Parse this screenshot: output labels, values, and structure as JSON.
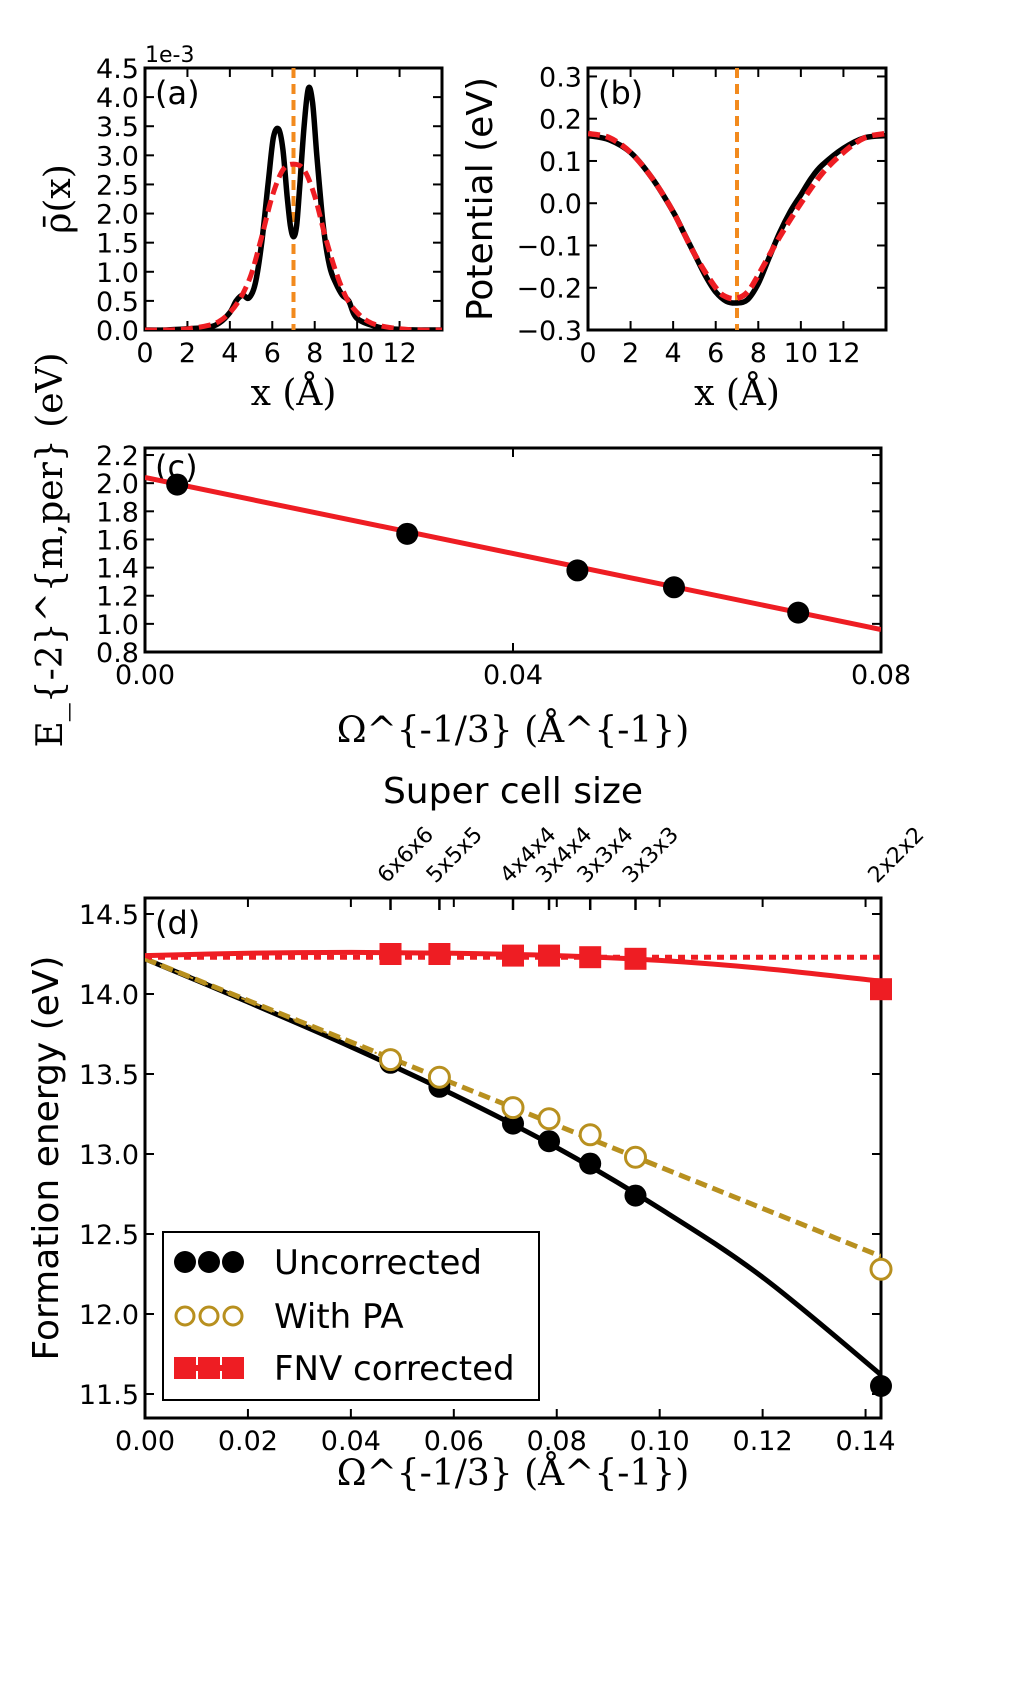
{
  "chart_data": [
    {
      "panel_label": "(a)",
      "type": "line",
      "xlabel": "x (Å)",
      "ylabel": "ρ̄(x)",
      "y_offset_text": "1e-3",
      "xlim": [
        0,
        14
      ],
      "ylim": [
        0,
        4.5
      ],
      "xticks": [
        "0",
        "2",
        "4",
        "6",
        "8",
        "10",
        "12"
      ],
      "yticks": [
        "0.0",
        "0.5",
        "1.0",
        "1.5",
        "2.0",
        "2.5",
        "3.0",
        "3.5",
        "4.0",
        "4.5"
      ],
      "series": [
        {
          "color": "#000000",
          "style": "solid",
          "x": [
            0,
            1,
            2,
            3,
            3.5,
            4,
            4.3,
            4.6,
            4.9,
            5.2,
            5.5,
            5.8,
            6.05,
            6.3,
            6.5,
            6.7,
            6.85,
            7.0,
            7.15,
            7.3,
            7.5,
            7.7,
            7.9,
            8.1,
            8.4,
            8.7,
            9.0,
            9.3,
            9.6,
            10,
            11,
            12,
            13,
            14
          ],
          "y": [
            0,
            0,
            0.02,
            0.05,
            0.12,
            0.3,
            0.5,
            0.6,
            0.55,
            0.8,
            1.5,
            2.5,
            3.3,
            3.45,
            3.1,
            2.3,
            1.8,
            1.6,
            1.8,
            2.5,
            3.5,
            4.15,
            3.9,
            3.0,
            1.8,
            1.1,
            0.8,
            0.6,
            0.5,
            0.2,
            0.05,
            0.01,
            0,
            0
          ]
        },
        {
          "color": "#ee1d23",
          "style": "dashed",
          "x": [
            0,
            1,
            2,
            3,
            3.5,
            4,
            4.5,
            5,
            5.5,
            6,
            6.5,
            7,
            7.5,
            8,
            8.5,
            9,
            9.5,
            10,
            10.5,
            11,
            12,
            13,
            14
          ],
          "y": [
            0,
            0,
            0.02,
            0.08,
            0.15,
            0.3,
            0.55,
            0.95,
            1.6,
            2.3,
            2.75,
            2.85,
            2.75,
            2.3,
            1.6,
            1.0,
            0.55,
            0.3,
            0.15,
            0.08,
            0.02,
            0,
            0
          ]
        }
      ],
      "vline": {
        "x": 7.0,
        "color": "#f28a1d"
      }
    },
    {
      "panel_label": "(b)",
      "type": "line",
      "xlabel": "x (Å)",
      "ylabel": "Potential (eV)",
      "xlim": [
        0,
        14
      ],
      "ylim": [
        -0.3,
        0.32
      ],
      "xticks": [
        "0",
        "2",
        "4",
        "6",
        "8",
        "10",
        "12"
      ],
      "yticks": [
        "−0.3",
        "−0.2",
        "−0.1",
        "0.0",
        "0.1",
        "0.2",
        "0.3"
      ],
      "series": [
        {
          "color": "#000000",
          "style": "solid",
          "x": [
            0,
            1,
            2,
            3,
            4,
            4.5,
            5,
            5.5,
            6,
            6.5,
            7,
            7.5,
            8,
            8.5,
            9,
            9.5,
            10,
            10.5,
            11,
            12,
            13,
            14
          ],
          "y": [
            0.16,
            0.15,
            0.12,
            0.06,
            -0.02,
            -0.07,
            -0.12,
            -0.17,
            -0.21,
            -0.232,
            -0.236,
            -0.228,
            -0.19,
            -0.13,
            -0.07,
            -0.02,
            0.02,
            0.06,
            0.09,
            0.13,
            0.155,
            0.16
          ]
        },
        {
          "color": "#ee1d23",
          "style": "dashed",
          "x": [
            0,
            1,
            2,
            3,
            4,
            5,
            6,
            6.5,
            7,
            7.5,
            8,
            9,
            10,
            11,
            12,
            13,
            14
          ],
          "y": [
            0.165,
            0.155,
            0.12,
            0.06,
            -0.02,
            -0.12,
            -0.2,
            -0.222,
            -0.225,
            -0.21,
            -0.17,
            -0.08,
            0.0,
            0.07,
            0.12,
            0.155,
            0.165
          ]
        }
      ],
      "vline": {
        "x": 7.0,
        "color": "#f28a1d"
      }
    },
    {
      "panel_label": "(c)",
      "type": "scatter",
      "xlabel": "Ω^{-1/3} (Å^{-1})",
      "ylabel": "E_{-2}^{m,per} (eV)",
      "xlim": [
        0,
        0.08
      ],
      "ylim": [
        0.8,
        2.25
      ],
      "xticks": [
        "0.00",
        "0.04",
        "0.08"
      ],
      "yticks": [
        "0.8",
        "1.0",
        "1.2",
        "1.4",
        "1.6",
        "1.8",
        "2.0",
        "2.2"
      ],
      "points": {
        "x": [
          0.0035,
          0.0285,
          0.047,
          0.0575,
          0.071
        ],
        "y": [
          1.99,
          1.64,
          1.38,
          1.26,
          1.08
        ]
      },
      "fit": {
        "color": "#ee1d23",
        "x": [
          0,
          0.08
        ],
        "y": [
          2.04,
          0.96
        ]
      }
    },
    {
      "panel_label": "(d)",
      "type": "line",
      "title": "Super cell size",
      "xlabel": "Ω^{-1/3} (Å^{-1})",
      "ylabel": "Formation energy (eV)",
      "xlim": [
        0,
        0.143
      ],
      "ylim": [
        11.35,
        14.6
      ],
      "xticks": [
        "0.00",
        "0.02",
        "0.04",
        "0.06",
        "0.08",
        "0.10",
        "0.12",
        "0.14"
      ],
      "yticks": [
        "11.5",
        "12.0",
        "12.5",
        "13.0",
        "13.5",
        "14.0",
        "14.5"
      ],
      "top_ticks": {
        "labels": [
          "6x6x6",
          "5x5x5",
          "4x4x4",
          "3x4x4",
          "3x3x4",
          "3x3x3",
          "2x2x2"
        ],
        "x": [
          0.0477,
          0.0572,
          0.0715,
          0.0785,
          0.0865,
          0.0953,
          0.143
        ]
      },
      "series": [
        {
          "name": "Uncorrected",
          "color": "#000000",
          "marker": "filled-circle",
          "x": [
            0.0477,
            0.0572,
            0.0715,
            0.0785,
            0.0865,
            0.0953,
            0.143
          ],
          "y": [
            13.57,
            13.42,
            13.19,
            13.08,
            12.94,
            12.74,
            11.55
          ]
        },
        {
          "name": "With PA",
          "color": "#b8901f",
          "marker": "open-circle",
          "x": [
            0.0477,
            0.0572,
            0.0715,
            0.0785,
            0.0865,
            0.0953,
            0.143
          ],
          "y": [
            13.59,
            13.48,
            13.29,
            13.22,
            13.12,
            12.98,
            12.28
          ]
        },
        {
          "name": "FNV corrected",
          "color": "#ee1d23",
          "marker": "square",
          "x": [
            0.0477,
            0.0572,
            0.0715,
            0.0785,
            0.0865,
            0.0953,
            0.143
          ],
          "y": [
            14.25,
            14.25,
            14.24,
            14.24,
            14.23,
            14.22,
            14.03
          ]
        }
      ],
      "fits": [
        {
          "color": "#000000",
          "style": "solid",
          "x": [
            0,
            0.02,
            0.04,
            0.06,
            0.08,
            0.1,
            0.12,
            0.143
          ],
          "y": [
            14.22,
            13.95,
            13.67,
            13.37,
            13.04,
            12.66,
            12.23,
            11.62
          ]
        },
        {
          "color": "#b8901f",
          "style": "dashed",
          "x": [
            0,
            0.02,
            0.04,
            0.06,
            0.08,
            0.1,
            0.12,
            0.143
          ],
          "y": [
            14.22,
            13.96,
            13.7,
            13.44,
            13.18,
            12.92,
            12.66,
            12.36
          ]
        },
        {
          "color": "#ee1d23",
          "style": "solid",
          "x": [
            0,
            0.02,
            0.04,
            0.06,
            0.08,
            0.1,
            0.12,
            0.143
          ],
          "y": [
            14.24,
            14.255,
            14.26,
            14.255,
            14.24,
            14.21,
            14.16,
            14.08
          ]
        },
        {
          "color": "#ee1d23",
          "style": "dotted",
          "x": [
            0,
            0.143
          ],
          "y": [
            14.23,
            14.23
          ]
        }
      ],
      "legend_position": "bottom-left"
    }
  ]
}
